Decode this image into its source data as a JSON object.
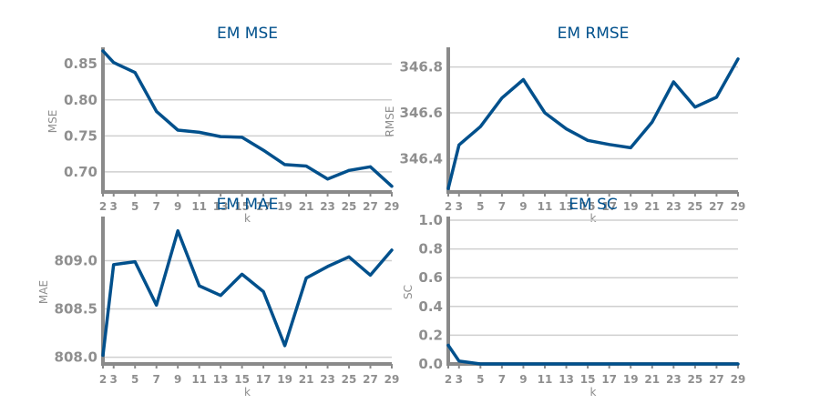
{
  "colors": {
    "line": "#00508c",
    "title": "#00508c",
    "axis": "#8a8a8a",
    "grid": "#cfcfcf",
    "tick_text": "#8f8f8f"
  },
  "chart_data": [
    {
      "type": "line",
      "title": "EM MSE",
      "xlabel": "k",
      "ylabel": "MSE",
      "x": [
        2,
        3,
        5,
        7,
        9,
        11,
        13,
        15,
        17,
        19,
        21,
        23,
        25,
        27,
        29
      ],
      "series": [
        {
          "values": [
            0.868,
            0.852,
            0.838,
            0.784,
            0.758,
            0.755,
            0.749,
            0.748,
            0.73,
            0.71,
            0.708,
            0.69,
            0.702,
            0.707,
            0.68
          ]
        }
      ],
      "yticks": [
        "0.70",
        "0.75",
        "0.80",
        "0.85"
      ],
      "ylim": [
        0.672,
        0.868
      ],
      "xticks": [
        "2",
        "3",
        "5",
        "7",
        "9",
        "11",
        "13",
        "15",
        "17",
        "19",
        "21",
        "23",
        "25",
        "27",
        "29"
      ],
      "xlim": [
        2,
        29
      ],
      "grid": true
    },
    {
      "type": "line",
      "title": "EM RMSE",
      "xlabel": "k",
      "ylabel": "RMSE",
      "x": [
        2,
        3,
        5,
        7,
        9,
        11,
        13,
        15,
        17,
        19,
        21,
        23,
        25,
        27,
        29
      ],
      "series": [
        {
          "values": [
            346.27,
            346.46,
            346.54,
            346.665,
            346.745,
            346.6,
            346.53,
            346.48,
            346.462,
            346.448,
            346.56,
            346.735,
            346.625,
            346.668,
            346.835
          ]
        }
      ],
      "yticks": [
        "346.4",
        "346.6",
        "346.8"
      ],
      "ylim": [
        346.255,
        346.87
      ],
      "xticks": [
        "2",
        "3",
        "5",
        "7",
        "9",
        "11",
        "13",
        "15",
        "17",
        "19",
        "21",
        "23",
        "25",
        "27",
        "29"
      ],
      "xlim": [
        2,
        29
      ],
      "grid": true
    },
    {
      "type": "line",
      "title": "EM MAE",
      "xlabel": "k",
      "ylabel": "MAE",
      "x": [
        2,
        3,
        5,
        7,
        9,
        11,
        13,
        15,
        17,
        19,
        21,
        23,
        25,
        27,
        29
      ],
      "series": [
        {
          "values": [
            808.02,
            808.96,
            808.99,
            808.54,
            809.31,
            808.74,
            808.64,
            808.86,
            808.68,
            808.12,
            808.82,
            808.94,
            809.04,
            808.85,
            809.11
          ]
        }
      ],
      "yticks": [
        "808.0",
        "808.5",
        "809.0"
      ],
      "ylim": [
        807.93,
        809.42
      ],
      "xticks": [
        "2",
        "3",
        "5",
        "7",
        "9",
        "11",
        "13",
        "15",
        "17",
        "19",
        "21",
        "23",
        "25",
        "27",
        "29"
      ],
      "xlim": [
        2,
        29
      ],
      "grid": true
    },
    {
      "type": "line",
      "title": "EM SC",
      "xlabel": "k",
      "ylabel": "SC",
      "x": [
        2,
        3,
        5,
        7,
        9,
        11,
        13,
        15,
        17,
        19,
        21,
        23,
        25,
        27,
        29
      ],
      "series": [
        {
          "values": [
            0.13,
            0.02,
            0.0,
            0.0,
            0.0,
            0.0,
            0.0,
            0.0,
            0.0,
            0.0,
            0.0,
            0.0,
            0.0,
            0.0,
            0.0
          ]
        }
      ],
      "yticks": [
        "0.0",
        "0.2",
        "0.4",
        "0.6",
        "0.8",
        "1.0"
      ],
      "ylim": [
        0.0,
        1.0
      ],
      "xticks": [
        "2",
        "3",
        "5",
        "7",
        "9",
        "11",
        "13",
        "15",
        "17",
        "19",
        "21",
        "23",
        "25",
        "27",
        "29"
      ],
      "xlim": [
        2,
        29
      ],
      "grid": true
    }
  ]
}
